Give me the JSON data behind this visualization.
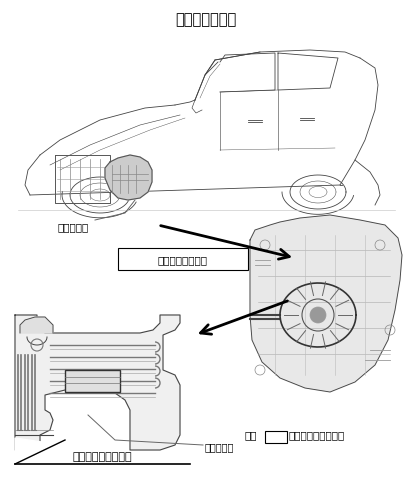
{
  "title": "改善箇所説明図",
  "title_fontsize": 10.5,
  "bg_color": "#ffffff",
  "text_color": "#000000",
  "labels": {
    "mudan_hensouki": "無段変速機",
    "yuatsu_clutch": "油圧クラッチ機構",
    "kijun_futekigo": "基準不適合発生箇所",
    "kanjo_seal": "環状シール",
    "note_prefix": "注：",
    "note_suffix": "は交換部品を示す。"
  },
  "fig_width": 4.12,
  "fig_height": 4.84,
  "dpi": 100
}
